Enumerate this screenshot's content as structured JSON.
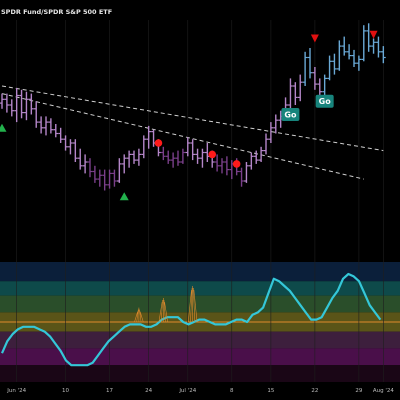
{
  "chart_data": {
    "type": "bar",
    "subtype": "ohlc",
    "title": "SPDR Fund/SPDR S&P 500 ETF",
    "x_ticks": [
      {
        "label": "Jun '24",
        "value": 3
      },
      {
        "label": "10",
        "value": 13
      },
      {
        "label": "17",
        "value": 22
      },
      {
        "label": "24",
        "value": 30
      },
      {
        "label": "Jul '24",
        "value": 38
      },
      {
        "label": "8",
        "value": 47
      },
      {
        "label": "15",
        "value": 55
      },
      {
        "label": "22",
        "value": 64
      },
      {
        "label": "29",
        "value": 73
      },
      {
        "label": "Aug '24",
        "value": 78
      }
    ],
    "xlim": [
      0,
      81
    ],
    "ylim_price": [
      0,
      100
    ],
    "ylim_indicator": [
      0,
      100
    ],
    "colors": {
      "background": "#000000",
      "bars_purple": "#b486c9",
      "bars_dark": "#7a3f8a",
      "bars_blue": "#6aa9d6",
      "trendline": "#cfcfcf",
      "indicator_line": "#34c7d8",
      "midline": "#e08a2c",
      "buy_signal": "#22b14c",
      "sell_signal": "#e01010",
      "dot": "#ff1a1a",
      "go_label_bg": "#17847c"
    },
    "ohlc": [
      {
        "x": 0,
        "o": 71,
        "h": 76,
        "l": 68,
        "c": 73,
        "color": "purple"
      },
      {
        "x": 1,
        "o": 73,
        "h": 76,
        "l": 66,
        "c": 70,
        "color": "purple"
      },
      {
        "x": 2,
        "o": 70,
        "h": 73,
        "l": 64,
        "c": 67,
        "color": "purple"
      },
      {
        "x": 3,
        "o": 67,
        "h": 79,
        "l": 61,
        "c": 75,
        "color": "purple"
      },
      {
        "x": 4,
        "o": 75,
        "h": 78,
        "l": 63,
        "c": 66,
        "color": "purple"
      },
      {
        "x": 5,
        "o": 66,
        "h": 77,
        "l": 62,
        "c": 73,
        "color": "purple"
      },
      {
        "x": 6,
        "o": 73,
        "h": 76,
        "l": 65,
        "c": 68,
        "color": "purple"
      },
      {
        "x": 7,
        "o": 68,
        "h": 72,
        "l": 58,
        "c": 61,
        "color": "purple"
      },
      {
        "x": 8,
        "o": 61,
        "h": 64,
        "l": 55,
        "c": 58,
        "color": "purple"
      },
      {
        "x": 9,
        "o": 58,
        "h": 64,
        "l": 54,
        "c": 61,
        "color": "purple"
      },
      {
        "x": 10,
        "o": 61,
        "h": 63,
        "l": 55,
        "c": 57,
        "color": "purple"
      },
      {
        "x": 11,
        "o": 57,
        "h": 60,
        "l": 53,
        "c": 55,
        "color": "purple"
      },
      {
        "x": 12,
        "o": 55,
        "h": 58,
        "l": 50,
        "c": 52,
        "color": "purple"
      },
      {
        "x": 13,
        "o": 52,
        "h": 54,
        "l": 46,
        "c": 48,
        "color": "purple"
      },
      {
        "x": 14,
        "o": 48,
        "h": 52,
        "l": 44,
        "c": 50,
        "color": "purple"
      },
      {
        "x": 15,
        "o": 50,
        "h": 52,
        "l": 40,
        "c": 42,
        "color": "purple"
      },
      {
        "x": 16,
        "o": 42,
        "h": 47,
        "l": 36,
        "c": 38,
        "color": "purple"
      },
      {
        "x": 17,
        "o": 38,
        "h": 44,
        "l": 34,
        "c": 40,
        "color": "purple"
      },
      {
        "x": 18,
        "o": 40,
        "h": 42,
        "l": 32,
        "c": 35,
        "color": "dark"
      },
      {
        "x": 19,
        "o": 35,
        "h": 38,
        "l": 29,
        "c": 31,
        "color": "dark"
      },
      {
        "x": 20,
        "o": 31,
        "h": 36,
        "l": 27,
        "c": 33,
        "color": "dark"
      },
      {
        "x": 21,
        "o": 33,
        "h": 36,
        "l": 25,
        "c": 28,
        "color": "dark"
      },
      {
        "x": 22,
        "o": 28,
        "h": 36,
        "l": 26,
        "c": 34,
        "color": "dark"
      },
      {
        "x": 23,
        "o": 34,
        "h": 36,
        "l": 27,
        "c": 30,
        "color": "dark"
      },
      {
        "x": 24,
        "o": 30,
        "h": 42,
        "l": 29,
        "c": 39,
        "color": "purple"
      },
      {
        "x": 25,
        "o": 39,
        "h": 44,
        "l": 34,
        "c": 42,
        "color": "purple"
      },
      {
        "x": 26,
        "o": 42,
        "h": 46,
        "l": 37,
        "c": 44,
        "color": "purple"
      },
      {
        "x": 27,
        "o": 44,
        "h": 46,
        "l": 39,
        "c": 41,
        "color": "purple"
      },
      {
        "x": 28,
        "o": 41,
        "h": 47,
        "l": 38,
        "c": 44,
        "color": "purple"
      },
      {
        "x": 29,
        "o": 44,
        "h": 54,
        "l": 42,
        "c": 52,
        "color": "purple"
      },
      {
        "x": 30,
        "o": 52,
        "h": 59,
        "l": 47,
        "c": 56,
        "color": "purple"
      },
      {
        "x": 31,
        "o": 56,
        "h": 57,
        "l": 48,
        "c": 50,
        "color": "purple"
      },
      {
        "x": 32,
        "o": 50,
        "h": 52,
        "l": 43,
        "c": 45,
        "color": "purple"
      },
      {
        "x": 33,
        "o": 45,
        "h": 48,
        "l": 41,
        "c": 43,
        "color": "dark"
      },
      {
        "x": 34,
        "o": 43,
        "h": 46,
        "l": 39,
        "c": 41,
        "color": "dark"
      },
      {
        "x": 35,
        "o": 41,
        "h": 45,
        "l": 37,
        "c": 42,
        "color": "dark"
      },
      {
        "x": 36,
        "o": 42,
        "h": 46,
        "l": 38,
        "c": 40,
        "color": "dark"
      },
      {
        "x": 37,
        "o": 40,
        "h": 47,
        "l": 39,
        "c": 45,
        "color": "dark"
      },
      {
        "x": 38,
        "o": 45,
        "h": 53,
        "l": 43,
        "c": 50,
        "color": "purple"
      },
      {
        "x": 39,
        "o": 50,
        "h": 52,
        "l": 41,
        "c": 44,
        "color": "purple"
      },
      {
        "x": 40,
        "o": 44,
        "h": 47,
        "l": 39,
        "c": 42,
        "color": "purple"
      },
      {
        "x": 41,
        "o": 42,
        "h": 47,
        "l": 37,
        "c": 45,
        "color": "purple"
      },
      {
        "x": 42,
        "o": 45,
        "h": 50,
        "l": 40,
        "c": 43,
        "color": "purple"
      },
      {
        "x": 43,
        "o": 43,
        "h": 46,
        "l": 37,
        "c": 40,
        "color": "purple"
      },
      {
        "x": 44,
        "o": 40,
        "h": 44,
        "l": 35,
        "c": 38,
        "color": "dark"
      },
      {
        "x": 45,
        "o": 38,
        "h": 42,
        "l": 34,
        "c": 40,
        "color": "dark"
      },
      {
        "x": 46,
        "o": 40,
        "h": 43,
        "l": 33,
        "c": 36,
        "color": "dark"
      },
      {
        "x": 47,
        "o": 36,
        "h": 41,
        "l": 31,
        "c": 39,
        "color": "dark"
      },
      {
        "x": 48,
        "o": 39,
        "h": 42,
        "l": 33,
        "c": 35,
        "color": "dark"
      },
      {
        "x": 49,
        "o": 35,
        "h": 37,
        "l": 27,
        "c": 30,
        "color": "dark"
      },
      {
        "x": 50,
        "o": 30,
        "h": 40,
        "l": 29,
        "c": 38,
        "color": "purple"
      },
      {
        "x": 51,
        "o": 38,
        "h": 45,
        "l": 36,
        "c": 43,
        "color": "purple"
      },
      {
        "x": 52,
        "o": 43,
        "h": 46,
        "l": 39,
        "c": 41,
        "color": "purple"
      },
      {
        "x": 53,
        "o": 41,
        "h": 48,
        "l": 40,
        "c": 46,
        "color": "purple"
      },
      {
        "x": 54,
        "o": 46,
        "h": 55,
        "l": 44,
        "c": 52,
        "color": "purple"
      },
      {
        "x": 55,
        "o": 52,
        "h": 61,
        "l": 50,
        "c": 58,
        "color": "purple"
      },
      {
        "x": 56,
        "o": 58,
        "h": 65,
        "l": 55,
        "c": 62,
        "color": "purple"
      },
      {
        "x": 57,
        "o": 62,
        "h": 67,
        "l": 58,
        "c": 64,
        "color": "purple"
      },
      {
        "x": 58,
        "o": 64,
        "h": 74,
        "l": 62,
        "c": 70,
        "color": "purple"
      },
      {
        "x": 59,
        "o": 70,
        "h": 84,
        "l": 68,
        "c": 80,
        "color": "purple"
      },
      {
        "x": 60,
        "o": 80,
        "h": 82,
        "l": 70,
        "c": 74,
        "color": "purple"
      },
      {
        "x": 61,
        "o": 74,
        "h": 86,
        "l": 72,
        "c": 82,
        "color": "purple"
      },
      {
        "x": 62,
        "o": 82,
        "h": 98,
        "l": 80,
        "c": 95,
        "color": "blue"
      },
      {
        "x": 63,
        "o": 95,
        "h": 100,
        "l": 84,
        "c": 87,
        "color": "blue"
      },
      {
        "x": 64,
        "o": 87,
        "h": 90,
        "l": 78,
        "c": 81,
        "color": "purple"
      },
      {
        "x": 65,
        "o": 81,
        "h": 84,
        "l": 74,
        "c": 77,
        "color": "purple"
      },
      {
        "x": 66,
        "o": 77,
        "h": 86,
        "l": 75,
        "c": 84,
        "color": "blue"
      },
      {
        "x": 67,
        "o": 84,
        "h": 96,
        "l": 83,
        "c": 93,
        "color": "blue"
      },
      {
        "x": 68,
        "o": 93,
        "h": 97,
        "l": 86,
        "c": 89,
        "color": "blue"
      },
      {
        "x": 69,
        "o": 89,
        "h": 104,
        "l": 88,
        "c": 101,
        "color": "blue"
      },
      {
        "x": 70,
        "o": 101,
        "h": 106,
        "l": 96,
        "c": 98,
        "color": "blue"
      },
      {
        "x": 71,
        "o": 98,
        "h": 102,
        "l": 94,
        "c": 96,
        "color": "blue"
      },
      {
        "x": 72,
        "o": 96,
        "h": 99,
        "l": 90,
        "c": 92,
        "color": "blue"
      },
      {
        "x": 73,
        "o": 92,
        "h": 96,
        "l": 88,
        "c": 94,
        "color": "blue"
      },
      {
        "x": 74,
        "o": 94,
        "h": 112,
        "l": 93,
        "c": 109,
        "color": "blue"
      },
      {
        "x": 75,
        "o": 109,
        "h": 113,
        "l": 98,
        "c": 101,
        "color": "blue"
      },
      {
        "x": 76,
        "o": 101,
        "h": 105,
        "l": 97,
        "c": 103,
        "color": "blue"
      },
      {
        "x": 77,
        "o": 103,
        "h": 106,
        "l": 95,
        "c": 98,
        "color": "blue"
      },
      {
        "x": 78,
        "o": 98,
        "h": 101,
        "l": 92,
        "c": 95,
        "color": "blue"
      }
    ],
    "trendlines": [
      {
        "x1": 0,
        "y1": 80,
        "x2": 78,
        "y2": 46
      },
      {
        "x1": 0,
        "y1": 76,
        "x2": 74,
        "y2": 31
      }
    ],
    "buy_triangles": [
      {
        "x": 0,
        "y": 58
      },
      {
        "x": 25,
        "y": 22
      }
    ],
    "sell_triangles": [
      {
        "x": 64,
        "y": 105
      },
      {
        "x": 76,
        "y": 107
      }
    ],
    "dots": [
      {
        "x": 32,
        "y": 50
      },
      {
        "x": 43,
        "y": 44
      },
      {
        "x": 48,
        "y": 39
      }
    ],
    "go_labels": [
      {
        "x": 59,
        "y": 65,
        "text": "Go"
      },
      {
        "x": 66,
        "y": 72,
        "text": "Go"
      }
    ],
    "indicator": {
      "values": [
        24,
        34,
        40,
        44,
        46,
        46,
        46,
        44,
        42,
        38,
        32,
        26,
        18,
        14,
        14,
        14,
        14,
        16,
        22,
        28,
        34,
        38,
        42,
        46,
        48,
        48,
        48,
        46,
        46,
        48,
        52,
        54,
        54,
        54,
        50,
        48,
        50,
        52,
        52,
        50,
        48,
        48,
        48,
        50,
        52,
        52,
        50,
        56,
        58,
        62,
        74,
        86,
        84,
        80,
        76,
        70,
        64,
        58,
        52,
        52,
        54,
        62,
        70,
        76,
        86,
        90,
        88,
        84,
        74,
        64,
        58,
        52
      ],
      "x_start": 0,
      "x_step": 1.09,
      "midline": 50,
      "bands": [
        {
          "from": 84,
          "to": 100,
          "color": "#0b1f3a"
        },
        {
          "from": 72,
          "to": 84,
          "color": "#0e4a4a"
        },
        {
          "from": 58,
          "to": 72,
          "color": "#2a4e2a"
        },
        {
          "from": 42,
          "to": 58,
          "color": "#5a5418"
        },
        {
          "from": 28,
          "to": 42,
          "color": "#3d1f3d"
        },
        {
          "from": 14,
          "to": 28,
          "color": "#4a0f4a"
        },
        {
          "from": 0,
          "to": 14,
          "color": "#1a0616"
        }
      ],
      "fan_spikes": [
        {
          "x": 28,
          "y": 62
        },
        {
          "x": 33,
          "y": 70
        },
        {
          "x": 39,
          "y": 80
        }
      ]
    }
  }
}
